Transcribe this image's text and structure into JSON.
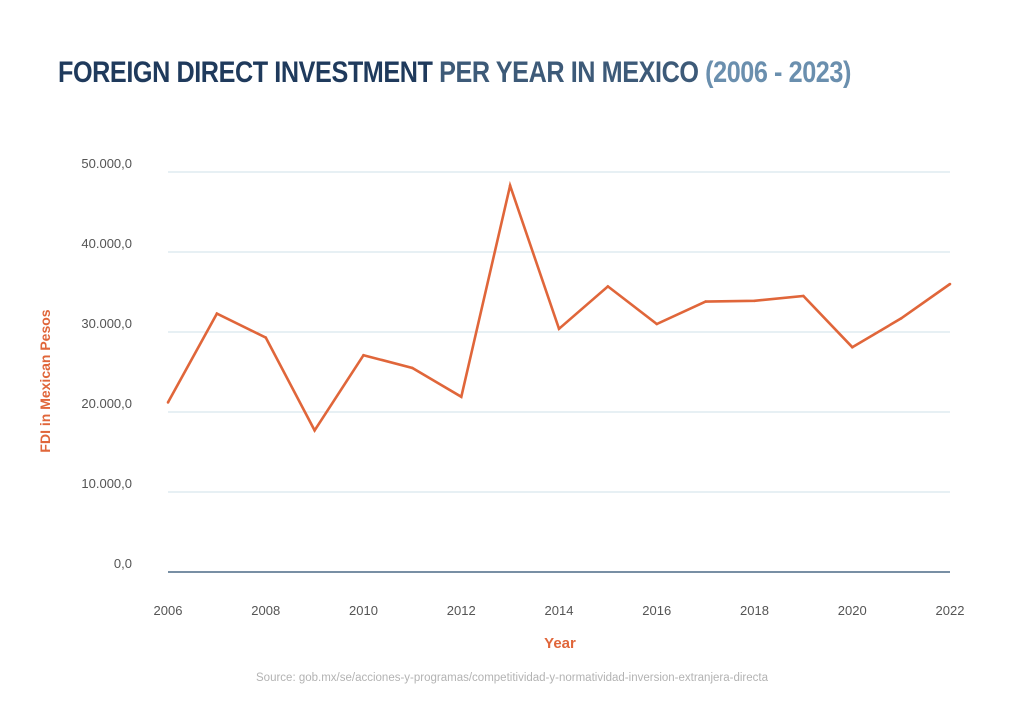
{
  "title": {
    "part1": "FOREIGN DIRECT INVESTMENT",
    "part2": "PER YEAR IN MEXICO",
    "part3": "(2006 - 2023)"
  },
  "source": "Source: gob.mx/se/acciones-y-programas/competitividad-y-normatividad-inversion-extranjera-directa",
  "colors": {
    "line": "#e0663a",
    "grid": "#cfe0ea",
    "axis": "#4b6a86",
    "tick_text": "#555555",
    "axis_title": "#e0663a"
  },
  "chart_data": {
    "type": "line",
    "xlabel": "Year",
    "ylabel": "FDI in Mexican Pesos",
    "xlim": [
      2006,
      2022
    ],
    "ylim": [
      0,
      50000
    ],
    "x_ticks": [
      "2006",
      "2008",
      "2010",
      "2012",
      "2014",
      "2016",
      "2018",
      "2020",
      "2022"
    ],
    "y_ticks": [
      "0,0",
      "10.000,0",
      "20.000,0",
      "30.000,0",
      "40.000,0",
      "50.000,0"
    ],
    "grid": true,
    "series": [
      {
        "x": [
          2006,
          2007,
          2008,
          2009,
          2010,
          2011,
          2012,
          2013,
          2014,
          2015,
          2016,
          2017,
          2018,
          2019,
          2020,
          2021,
          2022
        ],
        "values": [
          21200,
          32300,
          29300,
          17700,
          27100,
          25500,
          21900,
          48300,
          30400,
          35700,
          31000,
          33800,
          33900,
          34500,
          28100,
          31700,
          36000
        ]
      }
    ]
  }
}
